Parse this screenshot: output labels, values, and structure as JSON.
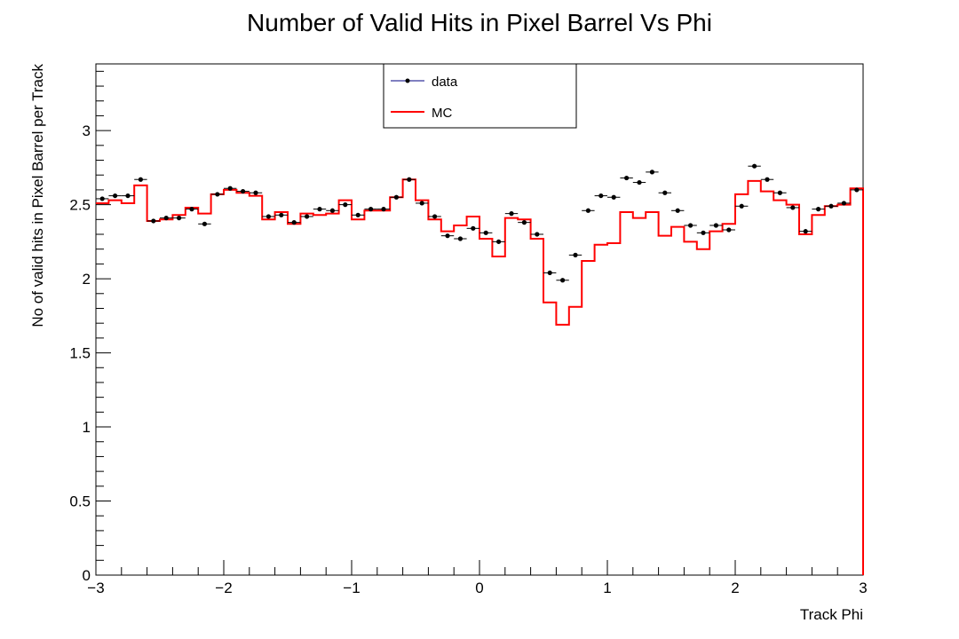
{
  "chart_data": {
    "type": "line",
    "title": "Number of Valid Hits in Pixel Barrel Vs Phi",
    "xlabel": "Track Phi",
    "ylabel": "No of valid hits in Pixel Barrel per Track",
    "xlim": [
      -3,
      3
    ],
    "ylim": [
      0,
      3.45
    ],
    "x_ticks": [
      -3,
      -2,
      -1,
      0,
      1,
      2,
      3
    ],
    "x_tick_labels": [
      "−3",
      "−2",
      "−1",
      "0",
      "1",
      "2",
      "3"
    ],
    "y_ticks": [
      0,
      0.5,
      1,
      1.5,
      2,
      2.5,
      3
    ],
    "y_tick_labels": [
      "0",
      "0.5",
      "1",
      "1.5",
      "2",
      "2.5",
      "3"
    ],
    "grid": false,
    "legend": {
      "placement": "top-center",
      "entries": [
        {
          "label": "data",
          "style": "markers",
          "color": "#000000"
        },
        {
          "label": "MC",
          "style": "step",
          "color": "#ff0000"
        }
      ]
    },
    "bin_edges": [
      -3.0,
      -2.9,
      -2.8,
      -2.7,
      -2.6,
      -2.5,
      -2.4,
      -2.3,
      -2.2,
      -2.1,
      -2.0,
      -1.9,
      -1.8,
      -1.7,
      -1.6,
      -1.5,
      -1.4,
      -1.3,
      -1.2,
      -1.1,
      -1.0,
      -0.9,
      -0.8,
      -0.7,
      -0.6,
      -0.5,
      -0.4,
      -0.3,
      -0.2,
      -0.1,
      0.0,
      0.1,
      0.2,
      0.3,
      0.4,
      0.5,
      0.6,
      0.7,
      0.8,
      0.9,
      1.0,
      1.1,
      1.2,
      1.3,
      1.4,
      1.5,
      1.6,
      1.7,
      1.8,
      1.9,
      2.0,
      2.1,
      2.2,
      2.3,
      2.4,
      2.5,
      2.6,
      2.7,
      2.8,
      2.9,
      3.0
    ],
    "series": [
      {
        "name": "data",
        "color": "#000000",
        "values": [
          2.54,
          2.56,
          2.56,
          2.67,
          2.39,
          2.41,
          2.41,
          2.47,
          2.37,
          2.57,
          2.61,
          2.59,
          2.58,
          2.42,
          2.43,
          2.38,
          2.42,
          2.47,
          2.46,
          2.5,
          2.43,
          2.47,
          2.47,
          2.55,
          2.67,
          2.51,
          2.42,
          2.29,
          2.27,
          2.34,
          2.31,
          2.25,
          2.44,
          2.38,
          2.3,
          2.04,
          1.99,
          2.16,
          2.46,
          2.56,
          2.55,
          2.68,
          2.65,
          2.72,
          2.58,
          2.46,
          2.36,
          2.31,
          2.36,
          2.33,
          2.49,
          2.76,
          2.67,
          2.58,
          2.48,
          2.32,
          2.47,
          2.49,
          2.51,
          2.6
        ]
      },
      {
        "name": "MC",
        "color": "#ff0000",
        "values": [
          2.51,
          2.53,
          2.51,
          2.63,
          2.39,
          2.4,
          2.43,
          2.48,
          2.44,
          2.57,
          2.6,
          2.58,
          2.56,
          2.4,
          2.45,
          2.37,
          2.44,
          2.43,
          2.44,
          2.53,
          2.4,
          2.46,
          2.46,
          2.55,
          2.67,
          2.53,
          2.4,
          2.32,
          2.36,
          2.42,
          2.27,
          2.15,
          2.41,
          2.4,
          2.27,
          1.84,
          1.69,
          1.81,
          2.12,
          2.23,
          2.24,
          2.45,
          2.41,
          2.45,
          2.29,
          2.35,
          2.25,
          2.2,
          2.32,
          2.37,
          2.57,
          2.66,
          2.59,
          2.53,
          2.5,
          2.3,
          2.43,
          2.49,
          2.5,
          2.61
        ]
      }
    ]
  }
}
